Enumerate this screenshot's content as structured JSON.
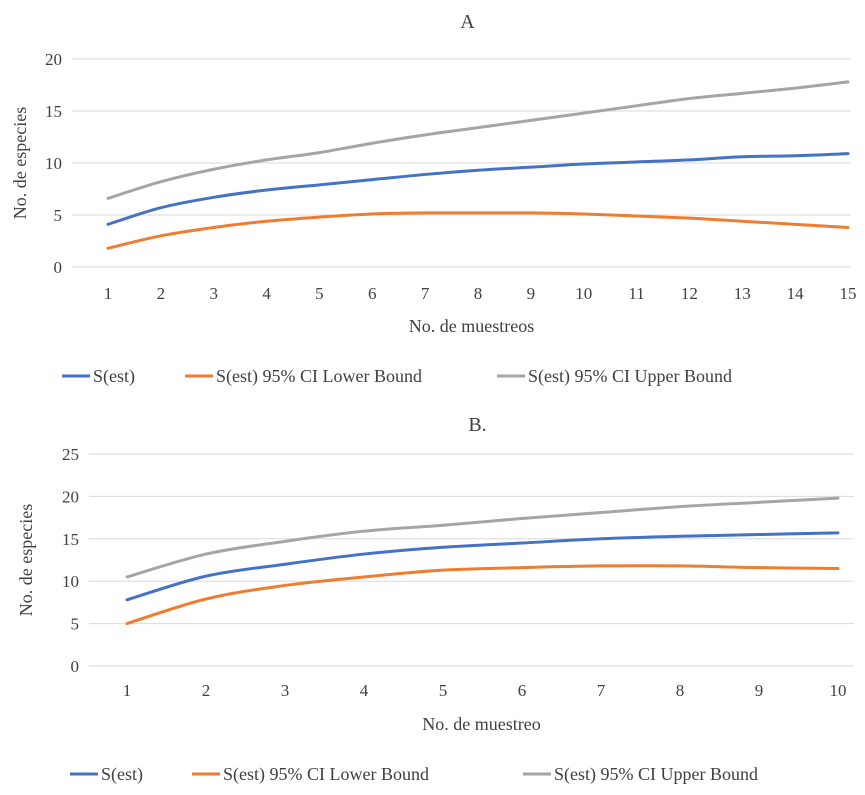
{
  "chart_data": [
    {
      "type": "line",
      "title": "A",
      "xlabel": "No. de muestreos",
      "ylabel": "No. de especies",
      "x": [
        1,
        2,
        3,
        4,
        5,
        6,
        7,
        8,
        9,
        10,
        11,
        12,
        13,
        14,
        15
      ],
      "ylim": [
        0,
        20
      ],
      "yticks": [
        0,
        5,
        10,
        15,
        20
      ],
      "grid": true,
      "legend_position": "bottom",
      "series": [
        {
          "name": "S(est)",
          "color": "#4472C4",
          "values": [
            4.1,
            5.7,
            6.7,
            7.4,
            7.9,
            8.4,
            8.9,
            9.3,
            9.6,
            9.9,
            10.1,
            10.3,
            10.6,
            10.7,
            10.9
          ]
        },
        {
          "name": "S(est) 95% CI Lower Bound",
          "color": "#ED7D31",
          "values": [
            1.8,
            3.0,
            3.8,
            4.4,
            4.8,
            5.1,
            5.2,
            5.2,
            5.2,
            5.1,
            4.9,
            4.7,
            4.4,
            4.1,
            3.8
          ]
        },
        {
          "name": "S(est) 95% CI Upper Bound",
          "color": "#A5A5A5",
          "values": [
            6.6,
            8.2,
            9.4,
            10.3,
            11.0,
            11.9,
            12.7,
            13.4,
            14.1,
            14.8,
            15.5,
            16.2,
            16.7,
            17.2,
            17.8
          ]
        }
      ]
    },
    {
      "type": "line",
      "title": "B.",
      "xlabel": "No. de muestreo",
      "ylabel": "No. de especies",
      "x": [
        1,
        2,
        3,
        4,
        5,
        6,
        7,
        8,
        9,
        10
      ],
      "ylim": [
        0,
        25
      ],
      "yticks": [
        0,
        5,
        10,
        15,
        20,
        25
      ],
      "grid": true,
      "legend_position": "bottom",
      "series": [
        {
          "name": "S(est)",
          "color": "#4472C4",
          "values": [
            7.8,
            10.6,
            12.0,
            13.2,
            14.0,
            14.5,
            15.0,
            15.3,
            15.5,
            15.7
          ]
        },
        {
          "name": "S(est) 95% CI Lower Bound",
          "color": "#ED7D31",
          "values": [
            5.0,
            7.9,
            9.5,
            10.5,
            11.3,
            11.6,
            11.8,
            11.8,
            11.6,
            11.5
          ]
        },
        {
          "name": "S(est) 95% CI Upper Bound",
          "color": "#A5A5A5",
          "values": [
            10.5,
            13.2,
            14.7,
            15.9,
            16.6,
            17.4,
            18.1,
            18.8,
            19.3,
            19.8
          ]
        }
      ]
    }
  ]
}
